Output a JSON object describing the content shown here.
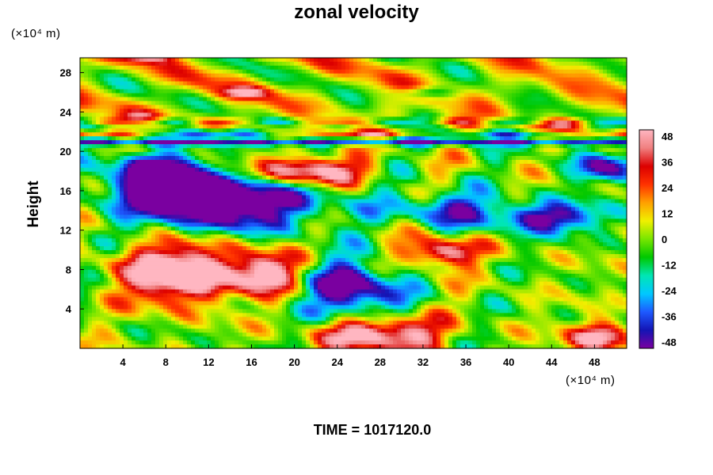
{
  "chart_data": {
    "type": "heatmap",
    "title": "zonal velocity",
    "ylabel": "Height",
    "xlabel": "",
    "x_unit_label": "(×10⁴ m)",
    "y_unit_label": "(×10⁴ m)",
    "footer": "TIME = 1017120.0",
    "x_ticks": [
      "4",
      "8",
      "12",
      "16",
      "20",
      "24",
      "28",
      "32",
      "36",
      "40",
      "44",
      "48"
    ],
    "y_ticks": [
      "4",
      "8",
      "12",
      "16",
      "20",
      "24",
      "28"
    ],
    "xlim": [
      0,
      51
    ],
    "ylim": [
      0,
      29.5
    ],
    "colorbar": {
      "ticks": [
        "48",
        "36",
        "24",
        "12",
        "0",
        "-12",
        "-24",
        "-36",
        "-48"
      ],
      "range": [
        -52,
        52
      ],
      "colors": [
        "#7a00a0",
        "#1414b4",
        "#1e5aff",
        "#00c8ff",
        "#00e6b4",
        "#00c800",
        "#78e600",
        "#f0f000",
        "#ffa000",
        "#ff3200",
        "#dc0000",
        "#f08080",
        "#ffb6c1"
      ]
    }
  }
}
